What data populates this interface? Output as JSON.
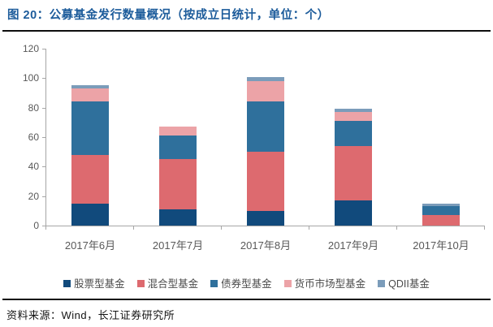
{
  "header": {
    "title": "图 20：公募基金发行数量概况（按成立日统计，单位：个）"
  },
  "footer": {
    "source": "资料来源：Wind，长江证券研究所"
  },
  "colors": {
    "title_text": "#1d5c9b",
    "rule": "#0d0d0d",
    "axis": "#a6a6a6",
    "tick_label": "#595959",
    "legend_text": "#4a4a4a",
    "background": "#ffffff"
  },
  "chart_data": {
    "type": "bar",
    "stacked": true,
    "title": "公募基金发行数量概况（按成立日统计，单位：个）",
    "categories": [
      "2017年6月",
      "2017年7月",
      "2017年8月",
      "2017年9月",
      "2017年10月"
    ],
    "series": [
      {
        "name": "股票型基金",
        "color": "#114a7c",
        "values": [
          15,
          11,
          10,
          17,
          0
        ]
      },
      {
        "name": "混合型基金",
        "color": "#dd6a6f",
        "values": [
          33,
          34,
          40,
          37,
          7
        ]
      },
      {
        "name": "债券型基金",
        "color": "#2f709c",
        "values": [
          36,
          16,
          34,
          17,
          6
        ]
      },
      {
        "name": "货币市场型基金",
        "color": "#eca3a7",
        "values": [
          9,
          6,
          14,
          6,
          0
        ]
      },
      {
        "name": "QDII基金",
        "color": "#7b9cba",
        "values": [
          2,
          0,
          3,
          2,
          2
        ]
      }
    ],
    "totals": [
      95,
      67,
      101,
      79,
      15
    ],
    "ylim": [
      0,
      120
    ],
    "ytick_step": 20,
    "xlabel": "",
    "ylabel": "",
    "grid": false,
    "legend_position": "bottom"
  }
}
